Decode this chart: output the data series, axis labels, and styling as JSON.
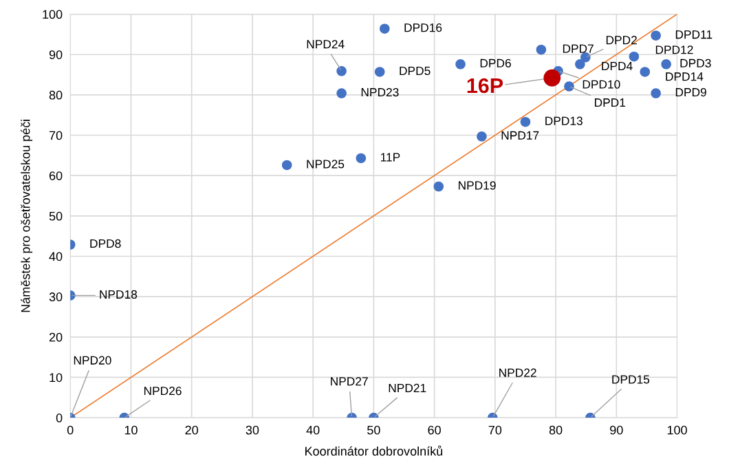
{
  "chart_data": {
    "type": "scatter",
    "xlabel": "Koordinátor dobrovolníků",
    "ylabel": "Náměstek pro ošetřovatelskou péči",
    "xlim": [
      0,
      100
    ],
    "ylim": [
      0,
      100
    ],
    "xticks": [
      0,
      10,
      20,
      30,
      40,
      50,
      60,
      70,
      80,
      90,
      100
    ],
    "yticks": [
      0,
      10,
      20,
      30,
      40,
      50,
      60,
      70,
      80,
      90,
      100
    ],
    "grid": true,
    "legend": false,
    "marker": "circle",
    "series": [
      {
        "color": "#4472c4",
        "x": [
          51.8,
          44.7,
          51.0,
          44.7,
          64.3,
          77.6,
          84.9,
          84.0,
          80.4,
          82.2,
          96.5,
          92.9,
          98.2,
          94.7,
          96.5,
          75.0,
          67.8,
          47.9,
          35.7,
          60.7,
          0,
          0,
          0,
          8.9,
          46.4,
          50.0,
          69.6,
          85.7
        ],
        "values": [
          96.4,
          85.9,
          85.7,
          80.4,
          87.6,
          91.2,
          89.3,
          87.6,
          85.9,
          82.1,
          94.7,
          89.5,
          87.6,
          85.7,
          80.4,
          73.3,
          69.7,
          64.3,
          62.6,
          57.3,
          42.9,
          30.3,
          0,
          0,
          0,
          0,
          0,
          0
        ]
      },
      {
        "name": "16P",
        "color": "#c00000",
        "x": [
          79.4
        ],
        "values": [
          84.2
        ]
      },
      {
        "type": "line",
        "color": "#ed7d31",
        "x": [
          0,
          100
        ],
        "values": [
          0,
          100
        ],
        "marker": "none"
      }
    ],
    "annotations": [
      {
        "text": "DPD16",
        "x": 51.8,
        "y": 96.4
      },
      {
        "text": "NPD24",
        "x": 44.7,
        "y": 85.9
      },
      {
        "text": "DPD5",
        "x": 51.0,
        "y": 85.7
      },
      {
        "text": "NPD23",
        "x": 44.7,
        "y": 80.4
      },
      {
        "text": "DPD6",
        "x": 64.3,
        "y": 87.6
      },
      {
        "text": "DPD7",
        "x": 77.6,
        "y": 91.2
      },
      {
        "text": "DPD2",
        "x": 84.9,
        "y": 89.3
      },
      {
        "text": "DPD4",
        "x": 84.0,
        "y": 87.6
      },
      {
        "text": "DPD10",
        "x": 80.4,
        "y": 85.9
      },
      {
        "text": "DPD1",
        "x": 82.2,
        "y": 82.1
      },
      {
        "text": "DPD11",
        "x": 96.5,
        "y": 94.7
      },
      {
        "text": "DPD12",
        "x": 92.9,
        "y": 89.5
      },
      {
        "text": "DPD3",
        "x": 98.2,
        "y": 87.6
      },
      {
        "text": "DPD14",
        "x": 94.7,
        "y": 85.7
      },
      {
        "text": "DPD9",
        "x": 96.5,
        "y": 80.4
      },
      {
        "text": "DPD13",
        "x": 75.0,
        "y": 73.3
      },
      {
        "text": "NPD17",
        "x": 67.8,
        "y": 69.7
      },
      {
        "text": "11P",
        "x": 47.9,
        "y": 64.3
      },
      {
        "text": "NPD25",
        "x": 35.7,
        "y": 62.6
      },
      {
        "text": "NPD19",
        "x": 60.7,
        "y": 57.3
      },
      {
        "text": "DPD8",
        "x": 0,
        "y": 42.9
      },
      {
        "text": "NPD18",
        "x": 0,
        "y": 30.3
      },
      {
        "text": "NPD20",
        "x": 0,
        "y": 0
      },
      {
        "text": "NPD26",
        "x": 8.9,
        "y": 0
      },
      {
        "text": "NPD27",
        "x": 46.4,
        "y": 0
      },
      {
        "text": "NPD21",
        "x": 50.0,
        "y": 0
      },
      {
        "text": "NPD22",
        "x": 69.6,
        "y": 0
      },
      {
        "text": "DPD15",
        "x": 85.7,
        "y": 0
      }
    ]
  }
}
